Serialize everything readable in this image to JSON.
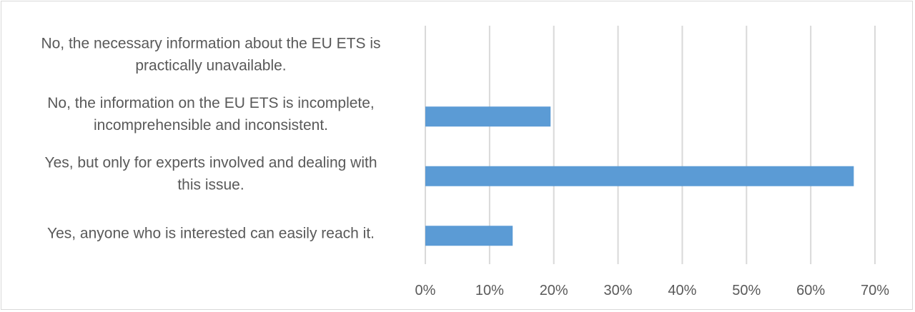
{
  "chart_data": {
    "type": "bar",
    "orientation": "horizontal",
    "categories": [
      [
        "No, the necessary information about the EU ETS is",
        "practically unavailable."
      ],
      [
        "No, the information on the EU ETS is incomplete,",
        "incomprehensible and inconsistent."
      ],
      [
        "Yes, but only for experts involved and dealing with",
        "this issue."
      ],
      [
        "Yes, anyone who is interested can easily reach it."
      ]
    ],
    "values": [
      0,
      19.5,
      66.7,
      13.6
    ],
    "xlim": [
      0,
      70
    ],
    "xticks": [
      "0%",
      "10%",
      "20%",
      "30%",
      "40%",
      "50%",
      "60%",
      "70%"
    ],
    "title": "",
    "xlabel": "",
    "ylabel": "",
    "grid": "vertical",
    "legend": "none",
    "bar_color": "#5b9bd5",
    "grid_color": "#d9d9d9"
  }
}
